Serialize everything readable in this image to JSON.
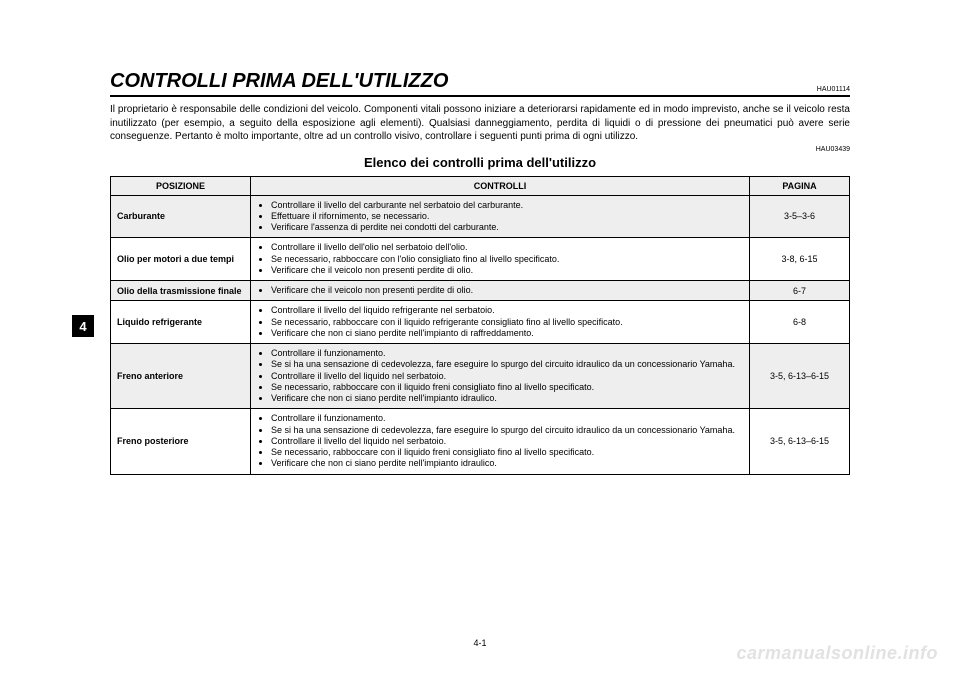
{
  "header": {
    "title": "CONTROLLI PRIMA DELL'UTILIZZO",
    "code_top": "HAU01114"
  },
  "intro": "Il proprietario è responsabile delle condizioni del veicolo. Componenti vitali possono iniziare a deteriorarsi rapidamente ed in modo imprevisto, anche se il veicolo resta inutilizzato (per esempio, a seguito della esposizione agli elementi). Qualsiasi danneggiamento, perdita di liquidi o di pressione dei pneumatici può avere serie conseguenze. Pertanto è molto importante, oltre ad un controllo visivo, controllare i seguenti punti prima di ogni utilizzo.",
  "code_sub": "HAU03439",
  "subtitle": "Elenco dei controlli prima dell'utilizzo",
  "tab": "4",
  "table": {
    "headers": {
      "pos": "POSIZIONE",
      "ctrl": "CONTROLLI",
      "pag": "PAGINA"
    },
    "rows": [
      {
        "alt": true,
        "pos": "Carburante",
        "ctrl": [
          "Controllare il livello del carburante nel serbatoio del carburante.",
          "Effettuare il rifornimento, se necessario.",
          "Verificare l'assenza di perdite nei condotti del carburante."
        ],
        "pag": "3-5–3-6"
      },
      {
        "alt": false,
        "pos": "Olio per motori a due tempi",
        "ctrl": [
          "Controllare il livello dell'olio nel serbatoio dell'olio.",
          "Se necessario, rabboccare con l'olio consigliato fino al livello specificato.",
          "Verificare che il veicolo non presenti perdite di olio."
        ],
        "pag": "3-8, 6-15"
      },
      {
        "alt": true,
        "pos": "Olio della trasmissione finale",
        "ctrl": [
          "Verificare che il veicolo non presenti perdite di olio."
        ],
        "pag": "6-7"
      },
      {
        "alt": false,
        "pos": "Liquido refrigerante",
        "ctrl": [
          "Controllare il livello del liquido refrigerante nel serbatoio.",
          "Se necessario, rabboccare con il liquido refrigerante consigliato fino al livello specificato.",
          "Verificare che non ci siano perdite nell'impianto di raffreddamento."
        ],
        "pag": "6-8"
      },
      {
        "alt": true,
        "pos": "Freno anteriore",
        "ctrl": [
          "Controllare il funzionamento.",
          "Se si ha una sensazione di cedevolezza, fare eseguire lo spurgo del circuito idraulico da un concessionario Yamaha.",
          "Controllare il livello del liquido nel serbatoio.",
          "Se necessario, rabboccare con il liquido freni consigliato fino al livello specificato.",
          "Verificare che non ci siano perdite nell'impianto idraulico."
        ],
        "pag": "3-5, 6-13–6-15"
      },
      {
        "alt": false,
        "pos": "Freno posteriore",
        "ctrl": [
          "Controllare il funzionamento.",
          "Se si ha una sensazione di cedevolezza, fare eseguire lo spurgo del circuito idraulico da un concessionario Yamaha.",
          "Controllare il livello del liquido nel serbatoio.",
          "Se necessario, rabboccare con il liquido freni consigliato fino al livello specificato.",
          "Verificare che non ci siano perdite nell'impianto idraulico."
        ],
        "pag": "3-5, 6-13–6-15"
      }
    ]
  },
  "pagenum": "4-1",
  "watermark": "carmanualsonline.info",
  "colors": {
    "alt_bg": "#eeeeee",
    "border": "#000000",
    "text": "#000000",
    "watermark": "#e2e2e2"
  }
}
